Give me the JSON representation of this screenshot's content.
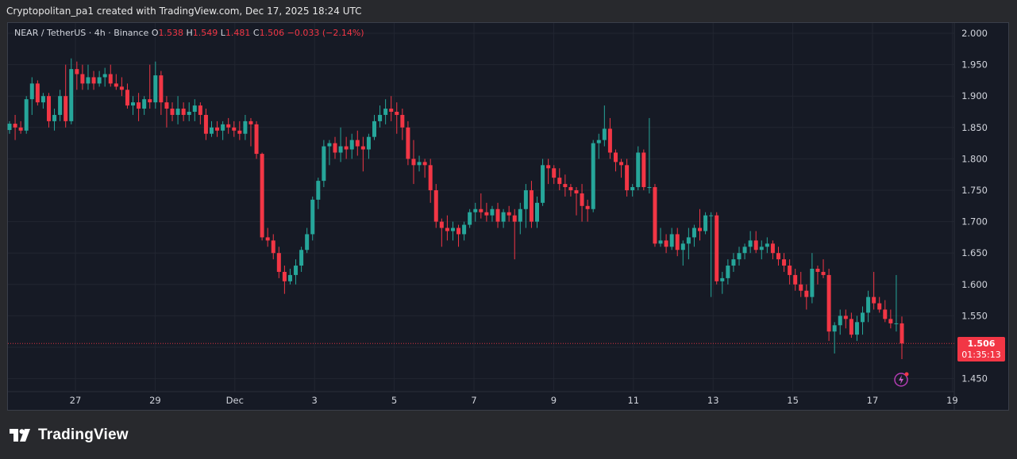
{
  "caption": "Cryptopolitan_pa1 created with TradingView.com, Dec 17, 2025 18:24 UTC",
  "legend": {
    "symbol": "NEAR / TetherUS · 4h · Binance",
    "o_label": "O",
    "o_value": "1.538",
    "h_label": "H",
    "h_value": "1.549",
    "l_label": "L",
    "l_value": "1.481",
    "c_label": "C",
    "c_value": "1.506",
    "change": "−0.033 (−2.14%)"
  },
  "price_badge": {
    "price": "1.506",
    "countdown": "01:35:13"
  },
  "brand": {
    "name": "TradingView"
  },
  "colors": {
    "up": "#26a69a",
    "down": "#f23645",
    "background": "#161a25",
    "grid": "#222631",
    "text": "#d1d4dc"
  },
  "icons": {
    "logo": "tradingview-logo-icon",
    "alert": "lightning-alert-icon"
  },
  "chart_data": {
    "type": "candlestick",
    "interval": "4h",
    "y_axis": {
      "min": 1.45,
      "max": 2.0,
      "ticks": [
        "2.000",
        "1.950",
        "1.900",
        "1.850",
        "1.800",
        "1.750",
        "1.700",
        "1.650",
        "1.600",
        "1.550",
        "1.450"
      ]
    },
    "x_axis": {
      "ticks": [
        {
          "label": "27",
          "day": 27
        },
        {
          "label": "29",
          "day": 29
        },
        {
          "label": "Dec",
          "day": 31
        },
        {
          "label": "3",
          "day": 33
        },
        {
          "label": "5",
          "day": 35
        },
        {
          "label": "7",
          "day": 37
        },
        {
          "label": "9",
          "day": 39
        },
        {
          "label": "11",
          "day": 41
        },
        {
          "label": "13",
          "day": 43
        },
        {
          "label": "15",
          "day": 45
        },
        {
          "label": "17",
          "day": 47
        },
        {
          "label": "19",
          "day": 49
        }
      ]
    },
    "last_price": 1.506,
    "candles": [
      [
        1.846,
        1.86,
        1.84,
        1.856
      ],
      [
        1.856,
        1.87,
        1.83,
        1.85
      ],
      [
        1.85,
        1.86,
        1.84,
        1.845
      ],
      [
        1.845,
        1.9,
        1.84,
        1.895
      ],
      [
        1.895,
        1.93,
        1.87,
        1.92
      ],
      [
        1.92,
        1.925,
        1.885,
        1.89
      ],
      [
        1.89,
        1.905,
        1.88,
        1.9
      ],
      [
        1.9,
        1.905,
        1.85,
        1.86
      ],
      [
        1.86,
        1.88,
        1.845,
        1.87
      ],
      [
        1.87,
        1.91,
        1.86,
        1.9
      ],
      [
        1.9,
        1.95,
        1.85,
        1.86
      ],
      [
        1.86,
        1.96,
        1.855,
        1.943
      ],
      [
        1.943,
        1.955,
        1.91,
        1.935
      ],
      [
        1.935,
        1.95,
        1.91,
        1.92
      ],
      [
        1.92,
        1.95,
        1.91,
        1.93
      ],
      [
        1.93,
        1.94,
        1.91,
        1.92
      ],
      [
        1.92,
        1.94,
        1.915,
        1.93
      ],
      [
        1.93,
        1.945,
        1.915,
        1.935
      ],
      [
        1.935,
        1.95,
        1.915,
        1.92
      ],
      [
        1.92,
        1.935,
        1.91,
        1.915
      ],
      [
        1.915,
        1.93,
        1.9,
        1.91
      ],
      [
        1.91,
        1.92,
        1.88,
        1.885
      ],
      [
        1.885,
        1.9,
        1.87,
        1.89
      ],
      [
        1.89,
        1.905,
        1.86,
        1.88
      ],
      [
        1.88,
        1.9,
        1.87,
        1.895
      ],
      [
        1.895,
        1.95,
        1.88,
        1.89
      ],
      [
        1.89,
        1.955,
        1.88,
        1.933
      ],
      [
        1.933,
        1.94,
        1.87,
        1.89
      ],
      [
        1.89,
        1.9,
        1.85,
        1.88
      ],
      [
        1.88,
        1.89,
        1.86,
        1.87
      ],
      [
        1.87,
        1.9,
        1.855,
        1.88
      ],
      [
        1.88,
        1.89,
        1.86,
        1.87
      ],
      [
        1.87,
        1.89,
        1.86,
        1.875
      ],
      [
        1.875,
        1.895,
        1.86,
        1.885
      ],
      [
        1.885,
        1.89,
        1.855,
        1.87
      ],
      [
        1.87,
        1.88,
        1.83,
        1.84
      ],
      [
        1.84,
        1.86,
        1.835,
        1.85
      ],
      [
        1.85,
        1.86,
        1.835,
        1.845
      ],
      [
        1.845,
        1.86,
        1.83,
        1.855
      ],
      [
        1.855,
        1.865,
        1.84,
        1.85
      ],
      [
        1.85,
        1.86,
        1.835,
        1.845
      ],
      [
        1.845,
        1.86,
        1.83,
        1.84
      ],
      [
        1.84,
        1.87,
        1.83,
        1.86
      ],
      [
        1.86,
        1.865,
        1.82,
        1.855
      ],
      [
        1.855,
        1.86,
        1.8,
        1.808
      ],
      [
        1.808,
        1.81,
        1.67,
        1.675
      ],
      [
        1.675,
        1.69,
        1.66,
        1.67
      ],
      [
        1.67,
        1.68,
        1.64,
        1.65
      ],
      [
        1.65,
        1.66,
        1.61,
        1.62
      ],
      [
        1.62,
        1.63,
        1.585,
        1.605
      ],
      [
        1.605,
        1.625,
        1.6,
        1.615
      ],
      [
        1.615,
        1.64,
        1.6,
        1.63
      ],
      [
        1.63,
        1.66,
        1.62,
        1.655
      ],
      [
        1.655,
        1.69,
        1.65,
        1.68
      ],
      [
        1.68,
        1.74,
        1.67,
        1.735
      ],
      [
        1.735,
        1.77,
        1.72,
        1.765
      ],
      [
        1.765,
        1.83,
        1.755,
        1.82
      ],
      [
        1.82,
        1.83,
        1.79,
        1.825
      ],
      [
        1.825,
        1.835,
        1.8,
        1.81
      ],
      [
        1.81,
        1.85,
        1.795,
        1.82
      ],
      [
        1.82,
        1.835,
        1.8,
        1.815
      ],
      [
        1.815,
        1.84,
        1.8,
        1.83
      ],
      [
        1.83,
        1.845,
        1.805,
        1.82
      ],
      [
        1.82,
        1.835,
        1.78,
        1.815
      ],
      [
        1.815,
        1.84,
        1.8,
        1.835
      ],
      [
        1.835,
        1.87,
        1.83,
        1.86
      ],
      [
        1.86,
        1.885,
        1.85,
        1.87
      ],
      [
        1.87,
        1.895,
        1.855,
        1.88
      ],
      [
        1.88,
        1.9,
        1.86,
        1.875
      ],
      [
        1.875,
        1.89,
        1.84,
        1.87
      ],
      [
        1.87,
        1.88,
        1.83,
        1.85
      ],
      [
        1.85,
        1.86,
        1.79,
        1.8
      ],
      [
        1.8,
        1.83,
        1.76,
        1.79
      ],
      [
        1.79,
        1.805,
        1.78,
        1.795
      ],
      [
        1.795,
        1.8,
        1.77,
        1.79
      ],
      [
        1.79,
        1.8,
        1.73,
        1.75
      ],
      [
        1.75,
        1.76,
        1.69,
        1.7
      ],
      [
        1.7,
        1.705,
        1.66,
        1.69
      ],
      [
        1.69,
        1.71,
        1.67,
        1.685
      ],
      [
        1.685,
        1.7,
        1.67,
        1.69
      ],
      [
        1.69,
        1.695,
        1.66,
        1.68
      ],
      [
        1.68,
        1.7,
        1.67,
        1.695
      ],
      [
        1.695,
        1.72,
        1.69,
        1.715
      ],
      [
        1.715,
        1.73,
        1.7,
        1.72
      ],
      [
        1.72,
        1.745,
        1.705,
        1.715
      ],
      [
        1.715,
        1.73,
        1.7,
        1.71
      ],
      [
        1.71,
        1.725,
        1.7,
        1.72
      ],
      [
        1.72,
        1.73,
        1.69,
        1.7
      ],
      [
        1.7,
        1.72,
        1.69,
        1.715
      ],
      [
        1.715,
        1.725,
        1.7,
        1.71
      ],
      [
        1.71,
        1.72,
        1.64,
        1.7
      ],
      [
        1.7,
        1.73,
        1.68,
        1.72
      ],
      [
        1.72,
        1.76,
        1.69,
        1.75
      ],
      [
        1.75,
        1.765,
        1.69,
        1.7
      ],
      [
        1.7,
        1.74,
        1.69,
        1.73
      ],
      [
        1.73,
        1.8,
        1.725,
        1.79
      ],
      [
        1.79,
        1.8,
        1.76,
        1.785
      ],
      [
        1.785,
        1.79,
        1.76,
        1.77
      ],
      [
        1.77,
        1.785,
        1.75,
        1.76
      ],
      [
        1.76,
        1.775,
        1.74,
        1.755
      ],
      [
        1.755,
        1.76,
        1.74,
        1.75
      ],
      [
        1.75,
        1.755,
        1.71,
        1.745
      ],
      [
        1.745,
        1.76,
        1.7,
        1.725
      ],
      [
        1.725,
        1.735,
        1.7,
        1.72
      ],
      [
        1.72,
        1.83,
        1.715,
        1.825
      ],
      [
        1.825,
        1.84,
        1.8,
        1.83
      ],
      [
        1.83,
        1.885,
        1.82,
        1.848
      ],
      [
        1.848,
        1.865,
        1.8,
        1.81
      ],
      [
        1.81,
        1.815,
        1.78,
        1.795
      ],
      [
        1.795,
        1.8,
        1.77,
        1.79
      ],
      [
        1.79,
        1.8,
        1.74,
        1.75
      ],
      [
        1.75,
        1.76,
        1.74,
        1.755
      ],
      [
        1.755,
        1.82,
        1.75,
        1.81
      ],
      [
        1.81,
        1.815,
        1.75,
        1.755
      ],
      [
        1.755,
        1.865,
        1.745,
        1.755
      ],
      [
        1.755,
        1.76,
        1.66,
        1.665
      ],
      [
        1.665,
        1.69,
        1.66,
        1.67
      ],
      [
        1.67,
        1.68,
        1.65,
        1.66
      ],
      [
        1.66,
        1.69,
        1.655,
        1.68
      ],
      [
        1.68,
        1.69,
        1.645,
        1.655
      ],
      [
        1.655,
        1.67,
        1.63,
        1.665
      ],
      [
        1.665,
        1.69,
        1.64,
        1.675
      ],
      [
        1.675,
        1.695,
        1.66,
        1.69
      ],
      [
        1.69,
        1.72,
        1.67,
        1.685
      ],
      [
        1.685,
        1.715,
        1.68,
        1.71
      ],
      [
        1.71,
        1.715,
        1.58,
        1.71
      ],
      [
        1.71,
        1.715,
        1.6,
        1.605
      ],
      [
        1.605,
        1.62,
        1.585,
        1.61
      ],
      [
        1.61,
        1.64,
        1.6,
        1.63
      ],
      [
        1.63,
        1.65,
        1.62,
        1.64
      ],
      [
        1.64,
        1.66,
        1.63,
        1.65
      ],
      [
        1.65,
        1.665,
        1.64,
        1.66
      ],
      [
        1.66,
        1.685,
        1.65,
        1.67
      ],
      [
        1.67,
        1.685,
        1.65,
        1.655
      ],
      [
        1.655,
        1.67,
        1.64,
        1.66
      ],
      [
        1.66,
        1.675,
        1.65,
        1.665
      ],
      [
        1.665,
        1.67,
        1.64,
        1.65
      ],
      [
        1.65,
        1.66,
        1.63,
        1.64
      ],
      [
        1.64,
        1.65,
        1.62,
        1.63
      ],
      [
        1.63,
        1.64,
        1.6,
        1.615
      ],
      [
        1.615,
        1.625,
        1.59,
        1.6
      ],
      [
        1.6,
        1.62,
        1.58,
        1.59
      ],
      [
        1.59,
        1.6,
        1.56,
        1.58
      ],
      [
        1.58,
        1.65,
        1.57,
        1.625
      ],
      [
        1.625,
        1.63,
        1.6,
        1.62
      ],
      [
        1.62,
        1.64,
        1.61,
        1.615
      ],
      [
        1.615,
        1.625,
        1.51,
        1.525
      ],
      [
        1.525,
        1.54,
        1.49,
        1.535
      ],
      [
        1.535,
        1.56,
        1.52,
        1.55
      ],
      [
        1.55,
        1.56,
        1.53,
        1.545
      ],
      [
        1.545,
        1.555,
        1.515,
        1.52
      ],
      [
        1.52,
        1.55,
        1.51,
        1.54
      ],
      [
        1.54,
        1.565,
        1.52,
        1.555
      ],
      [
        1.555,
        1.59,
        1.54,
        1.58
      ],
      [
        1.58,
        1.62,
        1.56,
        1.57
      ],
      [
        1.57,
        1.58,
        1.555,
        1.56
      ],
      [
        1.56,
        1.575,
        1.54,
        1.545
      ],
      [
        1.545,
        1.56,
        1.53,
        1.538
      ],
      [
        1.538,
        1.615,
        1.525,
        1.538
      ],
      [
        1.538,
        1.549,
        1.481,
        1.506
      ]
    ]
  }
}
